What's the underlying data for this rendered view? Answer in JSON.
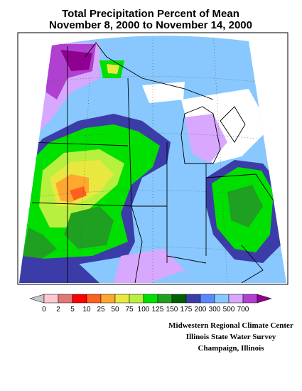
{
  "title": [
    "Total Precipitation Percent of Mean",
    "November 8, 2000 to November 14, 2000"
  ],
  "legend": {
    "colors": [
      "#c8c8c8",
      "#ffc8d0",
      "#e07878",
      "#ff0000",
      "#ff6020",
      "#ffa830",
      "#e8e840",
      "#b8f040",
      "#00e000",
      "#20a020",
      "#006000",
      "#3c3ca8",
      "#5a88ff",
      "#88c8ff",
      "#d8a8ff",
      "#b040d0",
      "#900090"
    ],
    "labels": [
      "0",
      "2",
      "5",
      "10",
      "25",
      "50",
      "75",
      "100",
      "125",
      "150",
      "175",
      "200",
      "300",
      "500",
      "700"
    ]
  },
  "credits": [
    "Midwestern Regional Climate Center",
    "Illinois State Water Survey",
    "Champaign, Illinois"
  ]
}
